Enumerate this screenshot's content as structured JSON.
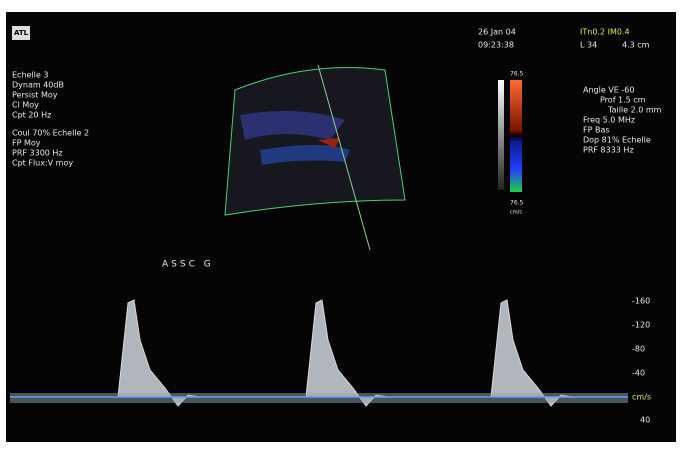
{
  "header": {
    "logo": "ATL",
    "date": "26 Jan 04",
    "time": "09:23:38",
    "indices": "ITn0.2 IM0.4",
    "depth_index": "L 34",
    "depth": "4.3 cm"
  },
  "left_params": [
    "Echelle 3",
    "Dynam 40dB",
    "Persist Moy",
    "Cl Moy",
    "Cpt 20 Hz",
    "Coul 70%  Echelle 2",
    "FP Moy",
    "PRF 3300 Hz",
    "Cpt Flux:V moy"
  ],
  "right_params": [
    "Angle VE -60",
    "Prof 1.5 cm",
    "Taille 2.0 mm",
    "Freq 5.0 MHz",
    "FP Bas",
    "Dop 81%  Echelle",
    "PRF 8333 Hz"
  ],
  "color_bar": {
    "top": "76.5",
    "bottom": "76.5",
    "unit": "cm/s"
  },
  "vessel_label": "ASSC G",
  "velocity_scale": [
    "-160",
    "-120",
    "-80",
    "-40",
    "cm/s",
    "40"
  ]
}
